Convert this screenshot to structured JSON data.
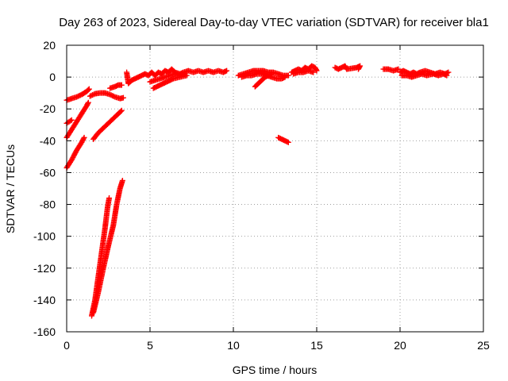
{
  "chart_data": {
    "type": "scatter",
    "title": "Day 263 of 2023, Sidereal Day-to-day VTEC variation (SDTVAR) for receiver bla1",
    "xlabel": "GPS time / hours",
    "ylabel": "SDTVAR / TECUs",
    "xlim": [
      0,
      25
    ],
    "ylim": [
      -160,
      20
    ],
    "xticks": [
      0,
      5,
      10,
      15,
      20,
      25
    ],
    "yticks": [
      -160,
      -140,
      -120,
      -100,
      -80,
      -60,
      -40,
      -20,
      0,
      20
    ],
    "grid": true,
    "marker": "plus",
    "color": "#ff0000",
    "series": [
      {
        "points": [
          [
            0.0,
            -14.5
          ],
          [
            0.3,
            -13.5
          ],
          [
            0.6,
            -12.5
          ],
          [
            0.9,
            -11
          ],
          [
            1.2,
            -9
          ],
          [
            1.35,
            -7.5
          ]
        ]
      },
      {
        "points": [
          [
            0.0,
            -29
          ],
          [
            0.15,
            -28
          ],
          [
            0.3,
            -27
          ]
        ]
      },
      {
        "points": [
          [
            0.0,
            -38
          ],
          [
            0.3,
            -33
          ],
          [
            0.6,
            -28
          ],
          [
            0.9,
            -23
          ],
          [
            1.2,
            -18
          ],
          [
            1.3,
            -16
          ]
        ]
      },
      {
        "points": [
          [
            0.0,
            -57
          ],
          [
            0.3,
            -52
          ],
          [
            0.6,
            -46
          ],
          [
            0.9,
            -41
          ],
          [
            1.05,
            -38
          ]
        ]
      },
      {
        "points": [
          [
            1.4,
            -12
          ],
          [
            1.7,
            -10.5
          ],
          [
            2.0,
            -10
          ],
          [
            2.3,
            -10
          ],
          [
            2.6,
            -11
          ],
          [
            2.9,
            -12.5
          ],
          [
            3.2,
            -13.5
          ],
          [
            3.4,
            -13
          ]
        ]
      },
      {
        "points": [
          [
            1.6,
            -39
          ],
          [
            1.9,
            -35
          ],
          [
            2.2,
            -32
          ],
          [
            2.5,
            -29
          ],
          [
            2.8,
            -26
          ],
          [
            3.1,
            -23
          ],
          [
            3.3,
            -21
          ]
        ]
      },
      {
        "points": [
          [
            1.5,
            -150
          ],
          [
            1.7,
            -140
          ],
          [
            1.9,
            -125
          ],
          [
            2.1,
            -110
          ],
          [
            2.3,
            -95
          ],
          [
            2.45,
            -82
          ],
          [
            2.55,
            -76
          ]
        ]
      },
      {
        "points": [
          [
            1.6,
            -148
          ],
          [
            1.9,
            -135
          ],
          [
            2.2,
            -120
          ],
          [
            2.5,
            -106
          ],
          [
            2.8,
            -93
          ],
          [
            3.0,
            -80
          ],
          [
            3.2,
            -70
          ],
          [
            3.35,
            -65
          ]
        ]
      },
      {
        "points": [
          [
            2.6,
            -7
          ],
          [
            2.9,
            -6
          ],
          [
            3.1,
            -5
          ],
          [
            3.3,
            -5
          ]
        ]
      },
      {
        "points": [
          [
            3.6,
            3
          ],
          [
            3.7,
            -4
          ],
          [
            3.9,
            -2
          ],
          [
            4.1,
            -1
          ],
          [
            4.3,
            0
          ],
          [
            4.5,
            1
          ],
          [
            4.7,
            2
          ],
          [
            4.9,
            1
          ],
          [
            5.1,
            3
          ],
          [
            5.3,
            1
          ],
          [
            5.5,
            3
          ],
          [
            5.7,
            2
          ],
          [
            5.9,
            4
          ],
          [
            6.1,
            3
          ],
          [
            6.3,
            5
          ],
          [
            6.5,
            3
          ],
          [
            6.8,
            2
          ],
          [
            7.0,
            3
          ],
          [
            7.3,
            4
          ],
          [
            7.6,
            3
          ],
          [
            7.9,
            4
          ],
          [
            8.2,
            3
          ],
          [
            8.5,
            4
          ],
          [
            8.8,
            3
          ],
          [
            9.1,
            4
          ],
          [
            9.4,
            3
          ],
          [
            9.6,
            4
          ]
        ]
      },
      {
        "points": [
          [
            5.0,
            -3
          ],
          [
            5.3,
            -2
          ],
          [
            5.6,
            -1
          ],
          [
            5.9,
            0
          ],
          [
            6.2,
            1
          ],
          [
            6.5,
            2
          ],
          [
            6.8,
            1
          ],
          [
            7.1,
            2
          ]
        ]
      },
      {
        "points": [
          [
            5.2,
            -7
          ],
          [
            5.6,
            -5
          ],
          [
            6.0,
            -3
          ],
          [
            6.4,
            -1
          ],
          [
            6.8,
            0
          ],
          [
            7.2,
            1
          ]
        ]
      },
      {
        "points": [
          [
            10.3,
            1
          ],
          [
            10.6,
            2
          ],
          [
            10.9,
            3
          ],
          [
            11.2,
            4
          ],
          [
            11.5,
            4
          ],
          [
            11.8,
            4
          ],
          [
            12.1,
            3
          ],
          [
            12.4,
            3
          ],
          [
            12.7,
            2
          ],
          [
            13.0,
            1
          ],
          [
            13.3,
            1
          ]
        ]
      },
      {
        "points": [
          [
            10.5,
            0
          ],
          [
            10.8,
            1
          ],
          [
            11.1,
            1
          ],
          [
            11.4,
            2
          ],
          [
            11.7,
            2
          ],
          [
            12.0,
            1
          ],
          [
            12.3,
            0
          ],
          [
            12.6,
            -1
          ],
          [
            12.9,
            -1
          ],
          [
            13.1,
            0
          ]
        ]
      },
      {
        "points": [
          [
            11.3,
            -6
          ],
          [
            11.5,
            -4
          ],
          [
            11.7,
            -2
          ],
          [
            11.9,
            0
          ],
          [
            12.1,
            1
          ],
          [
            12.3,
            2
          ]
        ]
      },
      {
        "points": [
          [
            12.7,
            -38
          ],
          [
            12.9,
            -39
          ],
          [
            13.1,
            -40
          ],
          [
            13.3,
            -41
          ]
        ]
      },
      {
        "points": [
          [
            13.5,
            3
          ],
          [
            13.7,
            4
          ],
          [
            13.9,
            5
          ],
          [
            14.1,
            4
          ],
          [
            14.3,
            6
          ],
          [
            14.5,
            5
          ],
          [
            14.7,
            7
          ],
          [
            14.9,
            6
          ],
          [
            15.0,
            4
          ]
        ]
      },
      {
        "points": [
          [
            13.6,
            2
          ],
          [
            13.9,
            3
          ],
          [
            14.2,
            3
          ],
          [
            14.5,
            4
          ],
          [
            14.8,
            3
          ]
        ]
      },
      {
        "points": [
          [
            16.1,
            6
          ],
          [
            16.3,
            5
          ],
          [
            16.7,
            7
          ],
          [
            16.8,
            5
          ],
          [
            17.4,
            6
          ],
          [
            17.6,
            7
          ],
          [
            17.5,
            5
          ]
        ]
      },
      {
        "points": [
          [
            19.0,
            5
          ],
          [
            19.3,
            5
          ],
          [
            19.6,
            4
          ],
          [
            19.9,
            5
          ]
        ]
      },
      {
        "points": [
          [
            20.0,
            3
          ],
          [
            20.2,
            4
          ],
          [
            20.4,
            3
          ],
          [
            20.6,
            2
          ],
          [
            20.8,
            3
          ],
          [
            21.0,
            2
          ],
          [
            21.2,
            3
          ],
          [
            21.5,
            4
          ],
          [
            21.8,
            3
          ],
          [
            22.1,
            2
          ],
          [
            22.4,
            3
          ],
          [
            22.7,
            2
          ],
          [
            22.9,
            3
          ]
        ]
      },
      {
        "points": [
          [
            20.1,
            1
          ],
          [
            20.4,
            1
          ],
          [
            20.7,
            0
          ],
          [
            21.0,
            1
          ],
          [
            21.3,
            2
          ],
          [
            21.6,
            1
          ],
          [
            22.0,
            2
          ],
          [
            22.3,
            1
          ],
          [
            22.6,
            2
          ],
          [
            22.8,
            1
          ]
        ]
      }
    ]
  }
}
